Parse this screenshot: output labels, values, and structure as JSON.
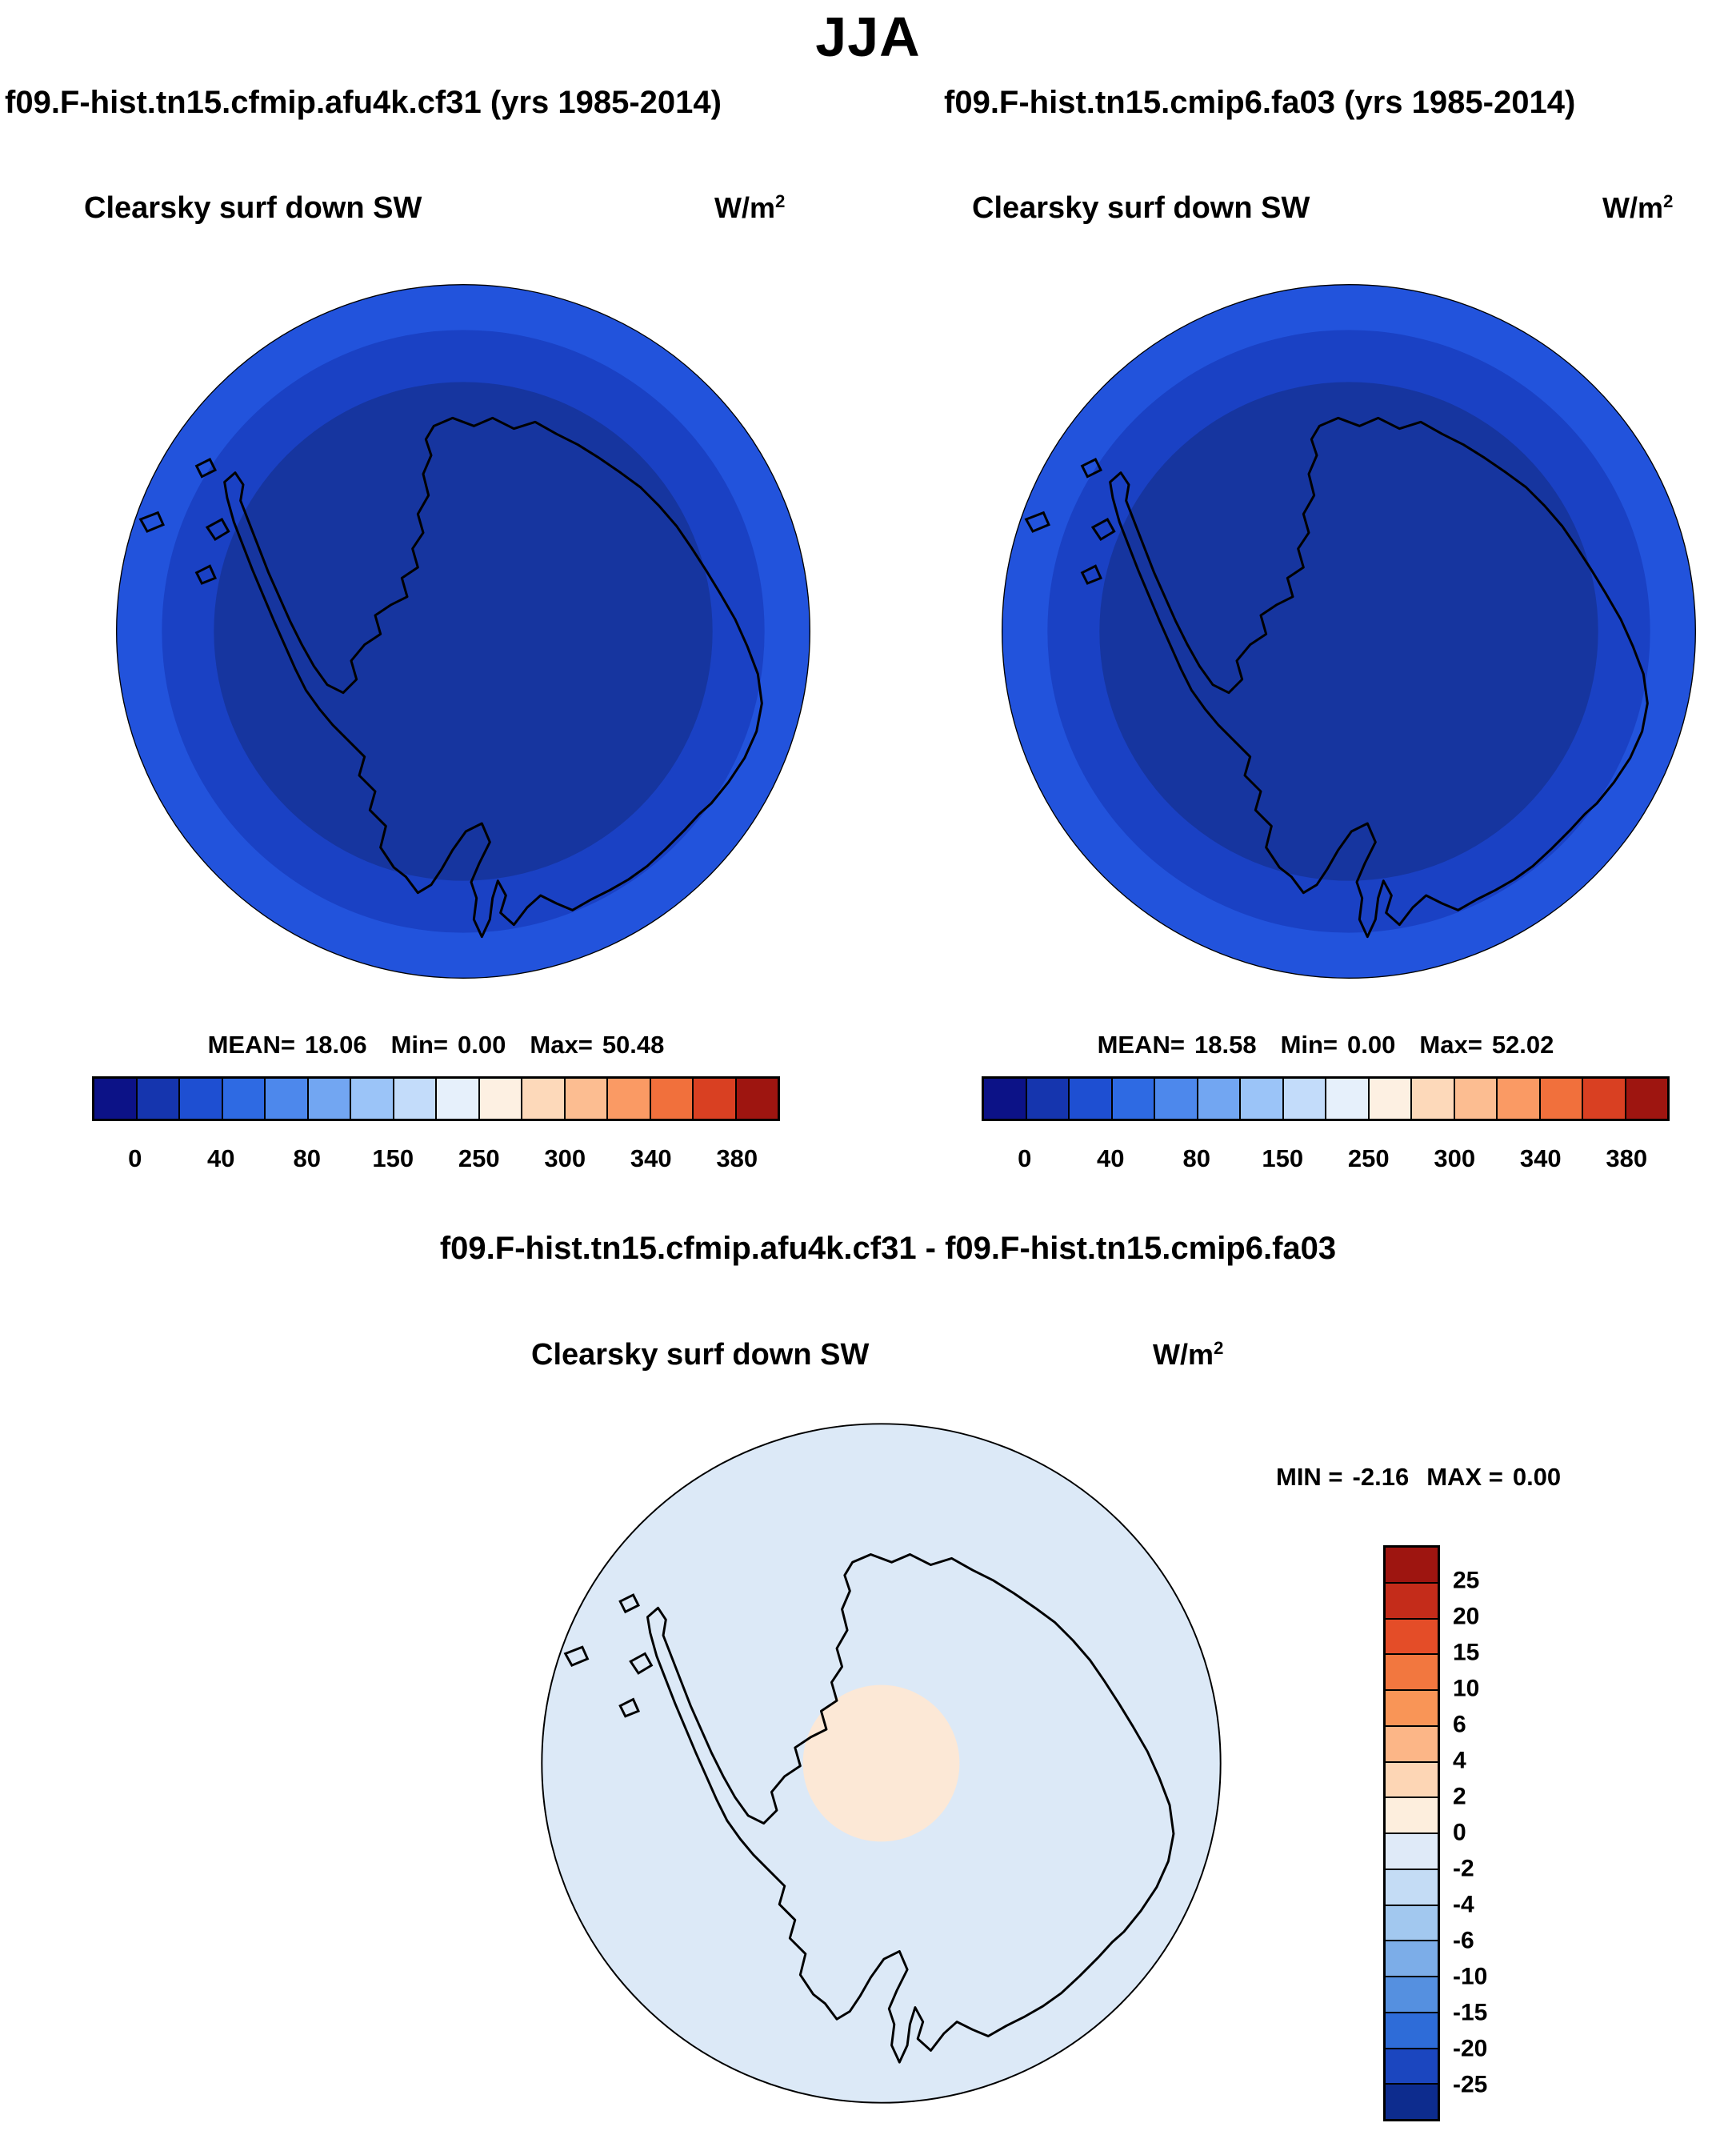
{
  "title": "JJA",
  "panels": {
    "left": {
      "header": "f09.F-hist.tn15.cfmip.afu4k.cf31 (yrs 1985-2014)",
      "subtitle": "Clearsky surf down SW",
      "units_base": "W/m",
      "units_exp": "2",
      "stats": {
        "mean_label": "MEAN=",
        "mean": "18.06",
        "min_label": "Min=",
        "min": "0.00",
        "max_label": "Max=",
        "max": "50.48"
      }
    },
    "right": {
      "header": "f09.F-hist.tn15.cmip6.fa03 (yrs 1985-2014)",
      "subtitle": "Clearsky surf down SW",
      "units_base": "W/m",
      "units_exp": "2",
      "stats": {
        "mean_label": "MEAN=",
        "mean": "18.58",
        "min_label": "Min=",
        "min": "0.00",
        "max_label": "Max=",
        "max": "52.02"
      }
    },
    "diff": {
      "header": "f09.F-hist.tn15.cfmip.afu4k.cf31 - f09.F-hist.tn15.cmip6.fa03",
      "subtitle": "Clearsky surf down SW",
      "units_base": "W/m",
      "units_exp": "2",
      "stats": {
        "min_label": "MIN =",
        "min": "-2.16",
        "max_label": "MAX =",
        "max": "0.00"
      }
    }
  },
  "colorbars": {
    "horizontal": {
      "colors": [
        "#0c1287",
        "#1535ae",
        "#1e4fd2",
        "#2e6ae3",
        "#4d88ec",
        "#72a6f2",
        "#9bc4f8",
        "#c3dcfa",
        "#e6f0fb",
        "#fdf0e2",
        "#fdd9ba",
        "#fcbd91",
        "#fa9a64",
        "#f1703c",
        "#d94022",
        "#9e1510"
      ],
      "tick_labels": [
        "0",
        "40",
        "80",
        "150",
        "250",
        "300",
        "340",
        "380"
      ]
    },
    "vertical": {
      "colors": [
        "#9e1510",
        "#c42c1a",
        "#e44d28",
        "#f2773f",
        "#f99557",
        "#fcb687",
        "#fdd6b5",
        "#fdeedd",
        "#dfeaf8",
        "#c4dcf5",
        "#a2c8ef",
        "#7cade8",
        "#5590e0",
        "#2e6cd8",
        "#1b46bf",
        "#0d2c8e"
      ],
      "tick_labels": [
        "25",
        "20",
        "15",
        "10",
        "6",
        "4",
        "2",
        "0",
        "-2",
        "-4",
        "-6",
        "-10",
        "-15",
        "-20",
        "-25"
      ]
    }
  },
  "map_colors": {
    "outer_ring": "#2253dc",
    "middle_ring": "#1a41c4",
    "inner": "#16359f",
    "diff_base": "#dce9f7",
    "diff_pole": "#fce8d6",
    "coastline": "#000000",
    "map_edge": "#000000"
  },
  "chart_data": [
    {
      "type": "heatmap",
      "projection": "south-polar-stereographic map of Antarctica",
      "season": "JJA",
      "title": "f09.F-hist.tn15.cfmip.afu4k.cf31 (yrs 1985-2014)",
      "variable": "Clearsky surf down SW",
      "units": "W/m2",
      "stats": {
        "mean": 18.06,
        "min": 0.0,
        "max": 50.48
      },
      "colorbar_ticks": [
        0,
        40,
        80,
        150,
        250,
        300,
        340,
        380
      ],
      "legend_position": "horizontal bar below map",
      "field_summary": "Dark navy-blue over the Antarctic interior (values near 0-20 W/m2), brightening in concentric blue rings toward the map edge (up to ~50 W/m2)"
    },
    {
      "type": "heatmap",
      "projection": "south-polar-stereographic map of Antarctica",
      "season": "JJA",
      "title": "f09.F-hist.tn15.cmip6.fa03 (yrs 1985-2014)",
      "variable": "Clearsky surf down SW",
      "units": "W/m2",
      "stats": {
        "mean": 18.58,
        "min": 0.0,
        "max": 52.02
      },
      "colorbar_ticks": [
        0,
        40,
        80,
        150,
        250,
        300,
        340,
        380
      ],
      "legend_position": "horizontal bar below map",
      "field_summary": "Dark navy-blue over the Antarctic interior (values near 0-20 W/m2), brightening in concentric blue rings toward the map edge (up to ~52 W/m2)"
    },
    {
      "type": "heatmap",
      "projection": "south-polar-stereographic map of Antarctica",
      "season": "JJA",
      "title": "f09.F-hist.tn15.cfmip.afu4k.cf31 - f09.F-hist.tn15.cmip6.fa03",
      "variable": "Clearsky surf down SW",
      "units": "W/m2",
      "stats": {
        "min": -2.16,
        "max": 0.0
      },
      "colorbar_ticks": [
        25,
        20,
        15,
        10,
        6,
        4,
        2,
        0,
        -2,
        -4,
        -6,
        -10,
        -15,
        -20,
        -25
      ],
      "legend_position": "vertical bar right of map",
      "field_summary": "Uniform pale blue (0 to -2 W/m2 difference) everywhere, with a small pale-peach near-zero patch centered on the pole"
    }
  ]
}
